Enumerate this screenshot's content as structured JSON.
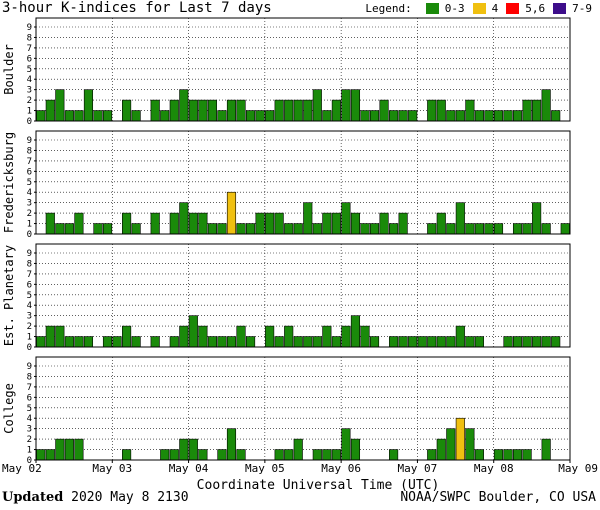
{
  "header": {
    "title": "3-hour K-indices for Last 7 days",
    "legend_label": "Legend:",
    "legend_items": [
      {
        "label": "0-3",
        "color": "#1a8a0a"
      },
      {
        "label": "4",
        "color": "#f0c010"
      },
      {
        "label": "5,6",
        "color": "#ff0000"
      },
      {
        "label": "7-9",
        "color": "#3d0d8a"
      }
    ]
  },
  "footer": {
    "updated_label": "Updated",
    "updated_value": "2020 May  8 2130",
    "source": "NOAA/SWPC Boulder, CO USA"
  },
  "chart_data": {
    "type": "bar",
    "xlabel": "Coordinate Universal Time (UTC)",
    "x_tick_labels": [
      "May 02",
      "May 03",
      "May 04",
      "May 05",
      "May 06",
      "May 07",
      "May 08",
      "May 09"
    ],
    "y_ticks": [
      "0",
      "1",
      "2",
      "3",
      "4",
      "5",
      "6",
      "7",
      "8",
      "9"
    ],
    "ylim": [
      0,
      9
    ],
    "grid": true,
    "panels": [
      {
        "ylabel": "Boulder",
        "values": [
          1,
          2,
          3,
          1,
          1,
          3,
          1,
          1,
          0,
          2,
          1,
          0,
          2,
          1,
          2,
          3,
          2,
          2,
          2,
          1,
          2,
          2,
          1,
          1,
          1,
          2,
          2,
          2,
          2,
          3,
          1,
          2,
          3,
          3,
          1,
          1,
          2,
          1,
          1,
          1,
          0,
          2,
          2,
          1,
          1,
          2,
          1,
          1,
          1,
          1,
          1,
          2,
          2,
          3,
          1,
          0
        ]
      },
      {
        "ylabel": "Fredericksburg",
        "values": [
          0,
          2,
          1,
          1,
          2,
          0,
          1,
          1,
          0,
          2,
          1,
          0,
          2,
          0,
          2,
          3,
          2,
          2,
          1,
          1,
          4,
          1,
          1,
          2,
          2,
          2,
          1,
          1,
          3,
          1,
          2,
          2,
          3,
          2,
          1,
          1,
          2,
          1,
          2,
          0,
          0,
          1,
          2,
          1,
          3,
          1,
          1,
          1,
          1,
          0,
          1,
          1,
          3,
          1,
          0,
          1
        ]
      },
      {
        "ylabel": "Est. Planetary",
        "values": [
          1,
          2,
          2,
          1,
          1,
          1,
          0,
          1,
          1,
          2,
          1,
          0,
          1,
          0,
          1,
          2,
          3,
          2,
          1,
          1,
          1,
          2,
          1,
          0,
          2,
          1,
          2,
          1,
          1,
          1,
          2,
          1,
          2,
          3,
          2,
          1,
          0,
          1,
          1,
          1,
          1,
          1,
          1,
          1,
          2,
          1,
          1,
          0,
          0,
          1,
          1,
          1,
          1,
          1,
          1,
          0
        ]
      },
      {
        "ylabel": "College",
        "values": [
          1,
          1,
          2,
          2,
          2,
          0,
          0,
          0,
          0,
          1,
          0,
          0,
          0,
          1,
          1,
          2,
          2,
          1,
          0,
          1,
          3,
          1,
          0,
          0,
          0,
          1,
          1,
          2,
          0,
          1,
          1,
          1,
          3,
          2,
          0,
          0,
          0,
          1,
          0,
          0,
          0,
          1,
          2,
          3,
          4,
          3,
          1,
          0,
          1,
          1,
          1,
          1,
          0,
          2,
          0,
          0
        ]
      }
    ]
  }
}
